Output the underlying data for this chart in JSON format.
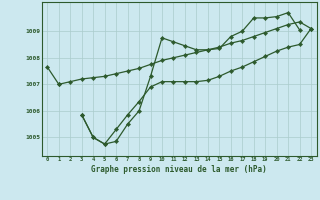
{
  "title": "Graphe pression niveau de la mer (hPa)",
  "background_color": "#cce8ef",
  "grid_color": "#aacccc",
  "line_color": "#2d5a2d",
  "x_labels": [
    "0",
    "1",
    "2",
    "3",
    "4",
    "5",
    "6",
    "7",
    "8",
    "9",
    "10",
    "11",
    "12",
    "13",
    "14",
    "15",
    "16",
    "17",
    "18",
    "19",
    "20",
    "21",
    "22",
    "23"
  ],
  "ylim": [
    1004.3,
    1010.1
  ],
  "yticks": [
    1005,
    1006,
    1007,
    1008,
    1009
  ],
  "series1": [
    1007.65,
    1007.0,
    null,
    1005.85,
    1005.0,
    1004.75,
    1004.85,
    1005.5,
    1006.0,
    1007.3,
    1008.75,
    1008.6,
    1008.45,
    1008.3,
    1008.3,
    1008.35,
    1008.8,
    1009.0,
    1009.5,
    1009.5,
    1009.55,
    1009.7,
    1009.05,
    null
  ],
  "series2": [
    null,
    1007.0,
    1007.1,
    1007.2,
    1007.25,
    1007.3,
    1007.4,
    1007.5,
    1007.6,
    1007.75,
    1007.9,
    1008.0,
    1008.1,
    1008.2,
    1008.3,
    1008.4,
    1008.55,
    1008.65,
    1008.8,
    1008.95,
    1009.1,
    1009.25,
    1009.35,
    1009.1
  ],
  "series3": [
    null,
    null,
    null,
    1005.85,
    1005.0,
    1004.75,
    1005.3,
    1005.85,
    1006.35,
    1006.9,
    1007.1,
    1007.1,
    1007.1,
    1007.1,
    1007.15,
    1007.3,
    1007.5,
    1007.65,
    1007.85,
    1008.05,
    1008.25,
    1008.4,
    1008.5,
    1009.1
  ]
}
